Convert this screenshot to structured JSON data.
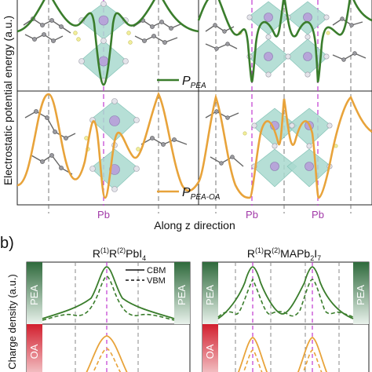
{
  "panel_a": {
    "ylabel": "Electrostatic potential energy (a.u.)",
    "xlabel": "Along z direction",
    "legend_top": {
      "main": "P",
      "sub": "PEA"
    },
    "legend_bottom": {
      "main": "P",
      "sub": "PEA-OA"
    },
    "pb_labels": [
      "Pb",
      "Pb",
      "Pb"
    ],
    "colors": {
      "green": "#3a7d2c",
      "orange": "#e8a33a",
      "octahedron": "#a9d9cf",
      "pb_label": "#a23aa8"
    }
  },
  "panel_b": {
    "label": "b)",
    "title_left": {
      "t1": "R",
      "s1": "(1)",
      "t2": "R",
      "s2": "(2)",
      "t3": "PbI",
      "s3": "4"
    },
    "title_right": {
      "t1": "R",
      "s1": "(1)",
      "t2": "R",
      "s2": "(2)",
      "t3": "MAPb",
      "s3": "2",
      "t4": "I",
      "s4": "7"
    },
    "ylabel": "Charge density (a.u.)",
    "legend": [
      "CBM",
      "VBM"
    ],
    "side_labels": [
      "PEA",
      "PEA",
      "PEA",
      "PEA",
      "OA",
      "OA"
    ],
    "colors": {
      "pea_bar": "#3f6f4a",
      "oa_bar": "#d9323c",
      "green": "#3a7d2c",
      "orange": "#e8a33a"
    }
  }
}
